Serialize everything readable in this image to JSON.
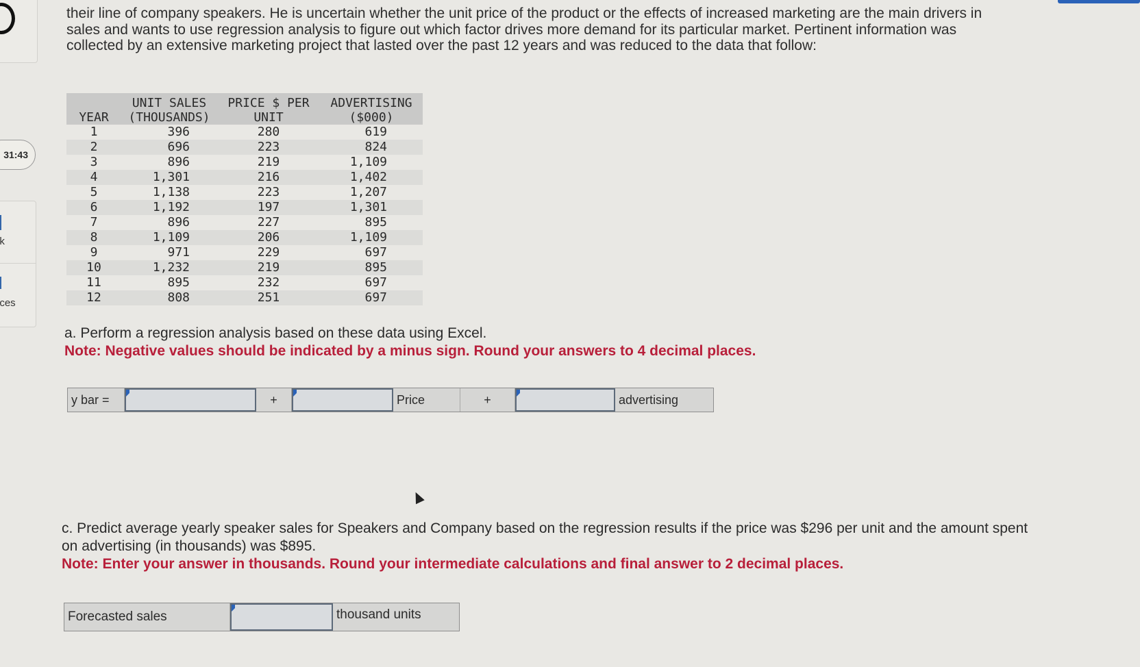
{
  "intro_text": "their line of company speakers. He is uncertain whether the unit price of the product or the effects of increased marketing are the main drivers in sales and wants to use regression analysis to figure out which factor drives more demand for its particular market. Pertinent information was collected by an extensive marketing project that lasted over the past 12 years and was reduced to the data that follow:",
  "sidebar": {
    "timer": "31:43",
    "item1_label": "ok",
    "item2_label": "nces"
  },
  "table": {
    "headers": [
      "YEAR",
      "UNIT SALES (THOUSANDS)",
      "PRICE $ PER UNIT",
      "ADVERTISING ($000)"
    ],
    "rows": [
      [
        "1",
        "396",
        "280",
        "619"
      ],
      [
        "2",
        "696",
        "223",
        "824"
      ],
      [
        "3",
        "896",
        "219",
        "1,109"
      ],
      [
        "4",
        "1,301",
        "216",
        "1,402"
      ],
      [
        "5",
        "1,138",
        "223",
        "1,207"
      ],
      [
        "6",
        "1,192",
        "197",
        "1,301"
      ],
      [
        "7",
        "896",
        "227",
        "895"
      ],
      [
        "8",
        "1,109",
        "206",
        "1,109"
      ],
      [
        "9",
        "971",
        "229",
        "697"
      ],
      [
        "10",
        "1,232",
        "219",
        "895"
      ],
      [
        "11",
        "895",
        "232",
        "697"
      ],
      [
        "12",
        "808",
        "251",
        "697"
      ]
    ]
  },
  "part_a": {
    "question": "a. Perform a regression analysis based on these data using Excel.",
    "note": "Note: Negative values should be indicated by a minus sign. Round your answers to 4 decimal places.",
    "equation": {
      "lhs": "y bar =",
      "plus1": "+",
      "price_label": "Price",
      "plus2": "+",
      "advertising_label": "advertising",
      "intercept_value": "",
      "price_coef_value": "",
      "advertising_coef_value": ""
    }
  },
  "part_c": {
    "question": "c. Predict average yearly speaker sales for Speakers and Company based on the regression results if the price was $296 per unit and the amount spent on advertising (in thousands) was $895.",
    "note": "Note: Enter your answer in thousands. Round your intermediate calculations and final answer to 2 decimal places.",
    "forecast_label": "Forecasted sales",
    "forecast_value": "",
    "unit_label": "thousand units"
  },
  "colors": {
    "note": "#b81f3a",
    "accent": "#2a62b8"
  }
}
